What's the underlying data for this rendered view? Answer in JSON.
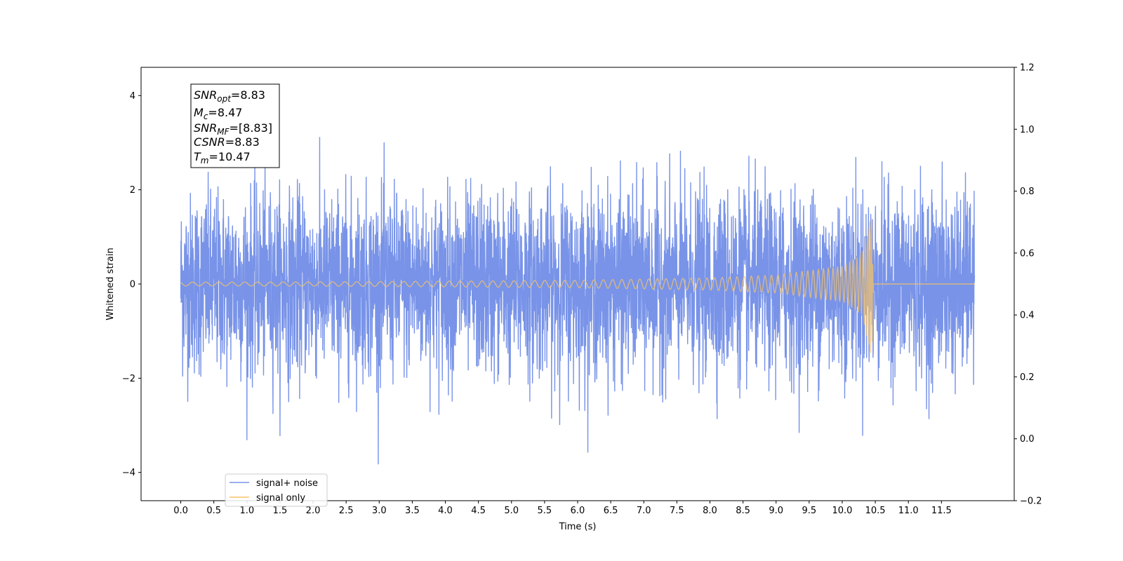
{
  "chart_data": {
    "type": "line",
    "xlabel": "Time (s)",
    "ylabel": "Whitened strain",
    "xlim": [
      -0.6,
      12.6
    ],
    "ylim": [
      -4.6,
      4.6
    ],
    "ylim_right": [
      -0.2,
      1.2
    ],
    "x_ticks": [
      "0.0",
      "0.5",
      "1.0",
      "1.5",
      "2.0",
      "2.5",
      "3.0",
      "3.5",
      "4.0",
      "4.5",
      "5.0",
      "5.5",
      "6.0",
      "6.5",
      "7.0",
      "7.5",
      "8.0",
      "8.5",
      "9.0",
      "9.5",
      "10.0",
      "10.5",
      "11.0",
      "11.5"
    ],
    "y_ticks": [
      "−4",
      "−2",
      "0",
      "2",
      "4"
    ],
    "y_ticks_right": [
      "−0.2",
      "0.0",
      "0.2",
      "0.4",
      "0.6",
      "0.8",
      "1.0",
      "1.2"
    ],
    "grid": false,
    "legend_position": "lower-left",
    "series": [
      {
        "name": "signal+ noise",
        "color": "#7893e8",
        "description": "whitened detector strain, noise amplitude envelope",
        "x_range": [
          0.0,
          12.0
        ],
        "envelope_max": 4.2,
        "envelope_min": -4.05,
        "typical_peak": 2.7
      },
      {
        "name": "signal only",
        "color": "#f6c36a",
        "description": "chirp waveform growing until merger",
        "x_range": [
          0.0,
          12.0
        ],
        "merger_time": 10.47,
        "envelope": [
          {
            "t": 0.0,
            "amp": 0.04
          },
          {
            "t": 2.0,
            "amp": 0.045
          },
          {
            "t": 4.0,
            "amp": 0.06
          },
          {
            "t": 6.0,
            "amp": 0.08
          },
          {
            "t": 8.0,
            "amp": 0.13
          },
          {
            "t": 9.0,
            "amp": 0.19
          },
          {
            "t": 10.0,
            "amp": 0.38
          },
          {
            "t": 10.3,
            "amp": 0.65
          },
          {
            "t": 10.45,
            "amp": 1.6
          },
          {
            "t": 10.47,
            "amp": 0.0
          }
        ]
      }
    ],
    "annotation": {
      "lines": [
        {
          "main": "SNR",
          "sub": "opt",
          "value": "=8.83"
        },
        {
          "main": "M",
          "sub": "c",
          "value": "=8.47"
        },
        {
          "main": "SNR",
          "sub": "MF",
          "value": "=[8.83]"
        },
        {
          "main": "CSNR",
          "sub": "",
          "value": "=8.83"
        },
        {
          "main": "T",
          "sub": "m",
          "value": "=10.47"
        }
      ]
    }
  }
}
